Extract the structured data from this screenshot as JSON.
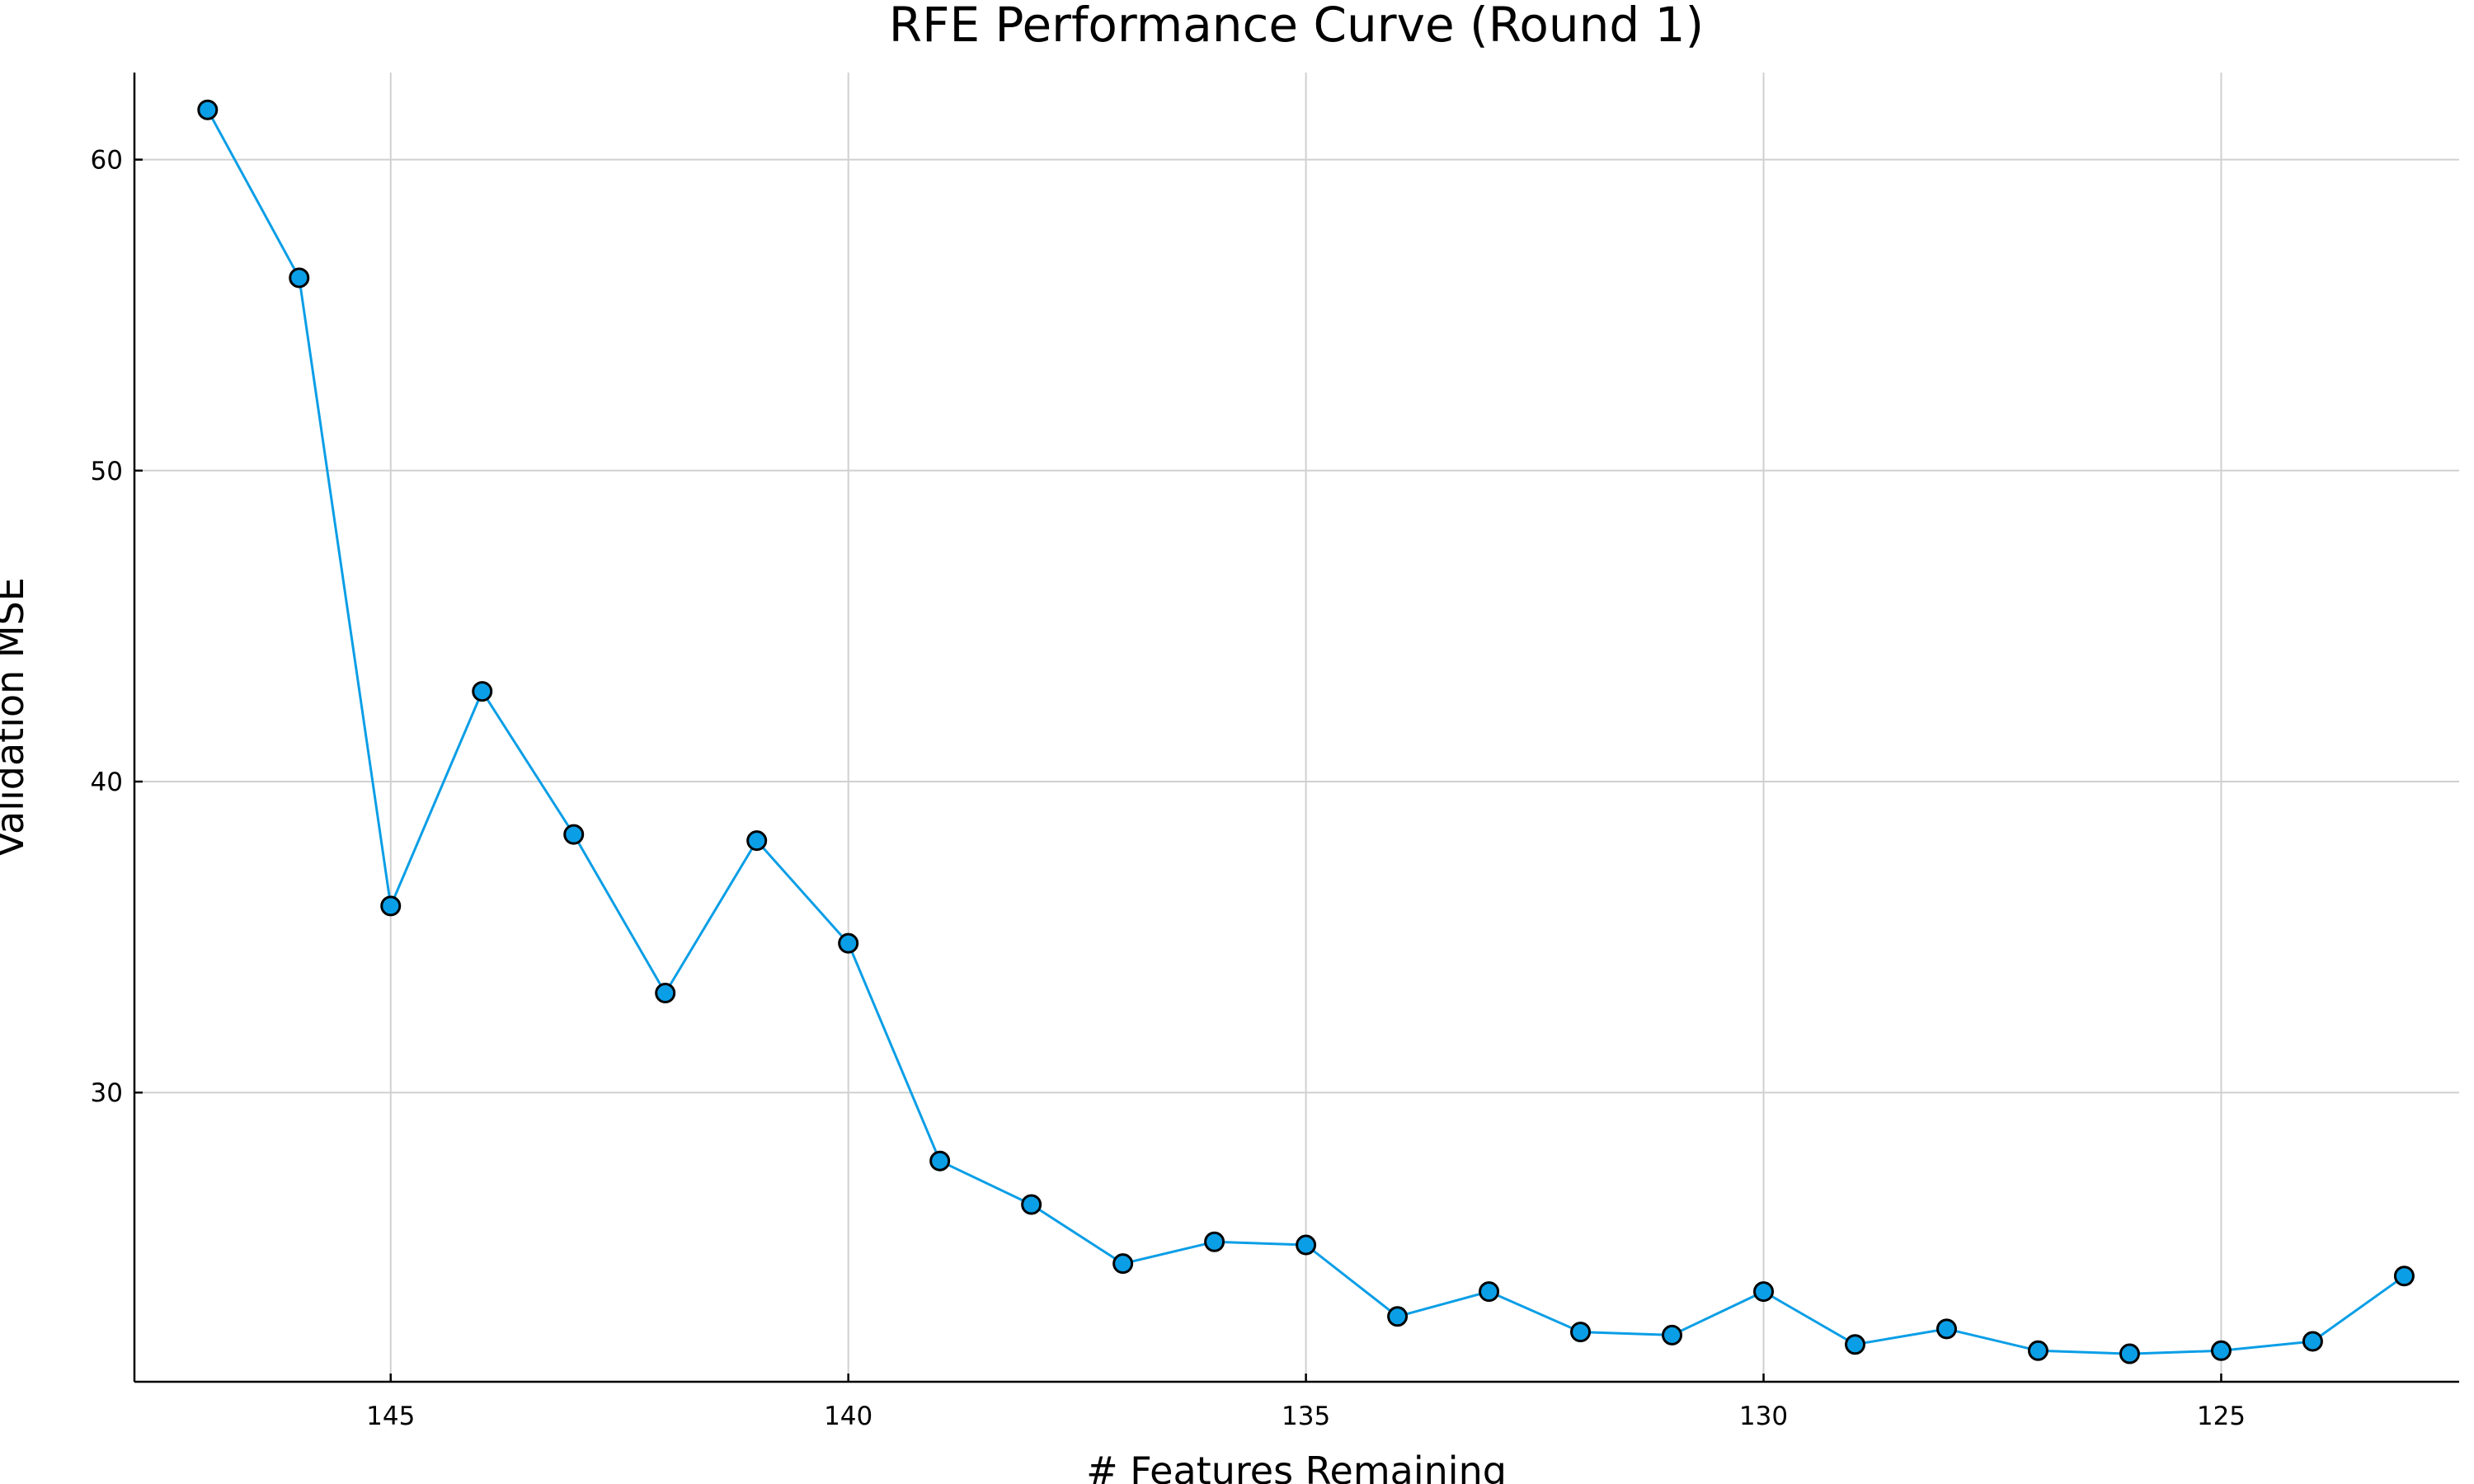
{
  "chart_data": {
    "type": "line",
    "title": "RFE Performance Curve (Round 1)",
    "xlabel": "# Features Remaining",
    "ylabel": "Validation MSE",
    "xlim": [
      147.8,
      122.4
    ],
    "ylim": [
      20.7,
      62.8
    ],
    "x_reversed": true,
    "grid": true,
    "legend": "none",
    "colors": {
      "series": "#0a9ee6",
      "marker_edge": "#000000",
      "grid": "#d0d0d0",
      "axis": "#000000"
    },
    "x_ticks": [
      145,
      140,
      135,
      130,
      125
    ],
    "y_ticks": [
      30,
      40,
      50,
      60
    ],
    "series": [
      {
        "x": [
          147,
          146,
          145,
          144,
          143,
          142,
          141,
          140,
          139,
          138,
          137,
          136,
          135,
          134,
          133,
          132,
          131,
          130,
          129,
          128,
          127,
          126,
          125,
          124,
          123
        ],
        "y": [
          61.6,
          56.2,
          36.0,
          42.9,
          38.3,
          33.2,
          38.1,
          34.8,
          27.8,
          26.4,
          24.5,
          25.2,
          25.1,
          22.8,
          23.6,
          22.3,
          22.2,
          23.6,
          21.9,
          22.4,
          21.7,
          21.6,
          21.7,
          22.0,
          24.1
        ]
      }
    ]
  }
}
